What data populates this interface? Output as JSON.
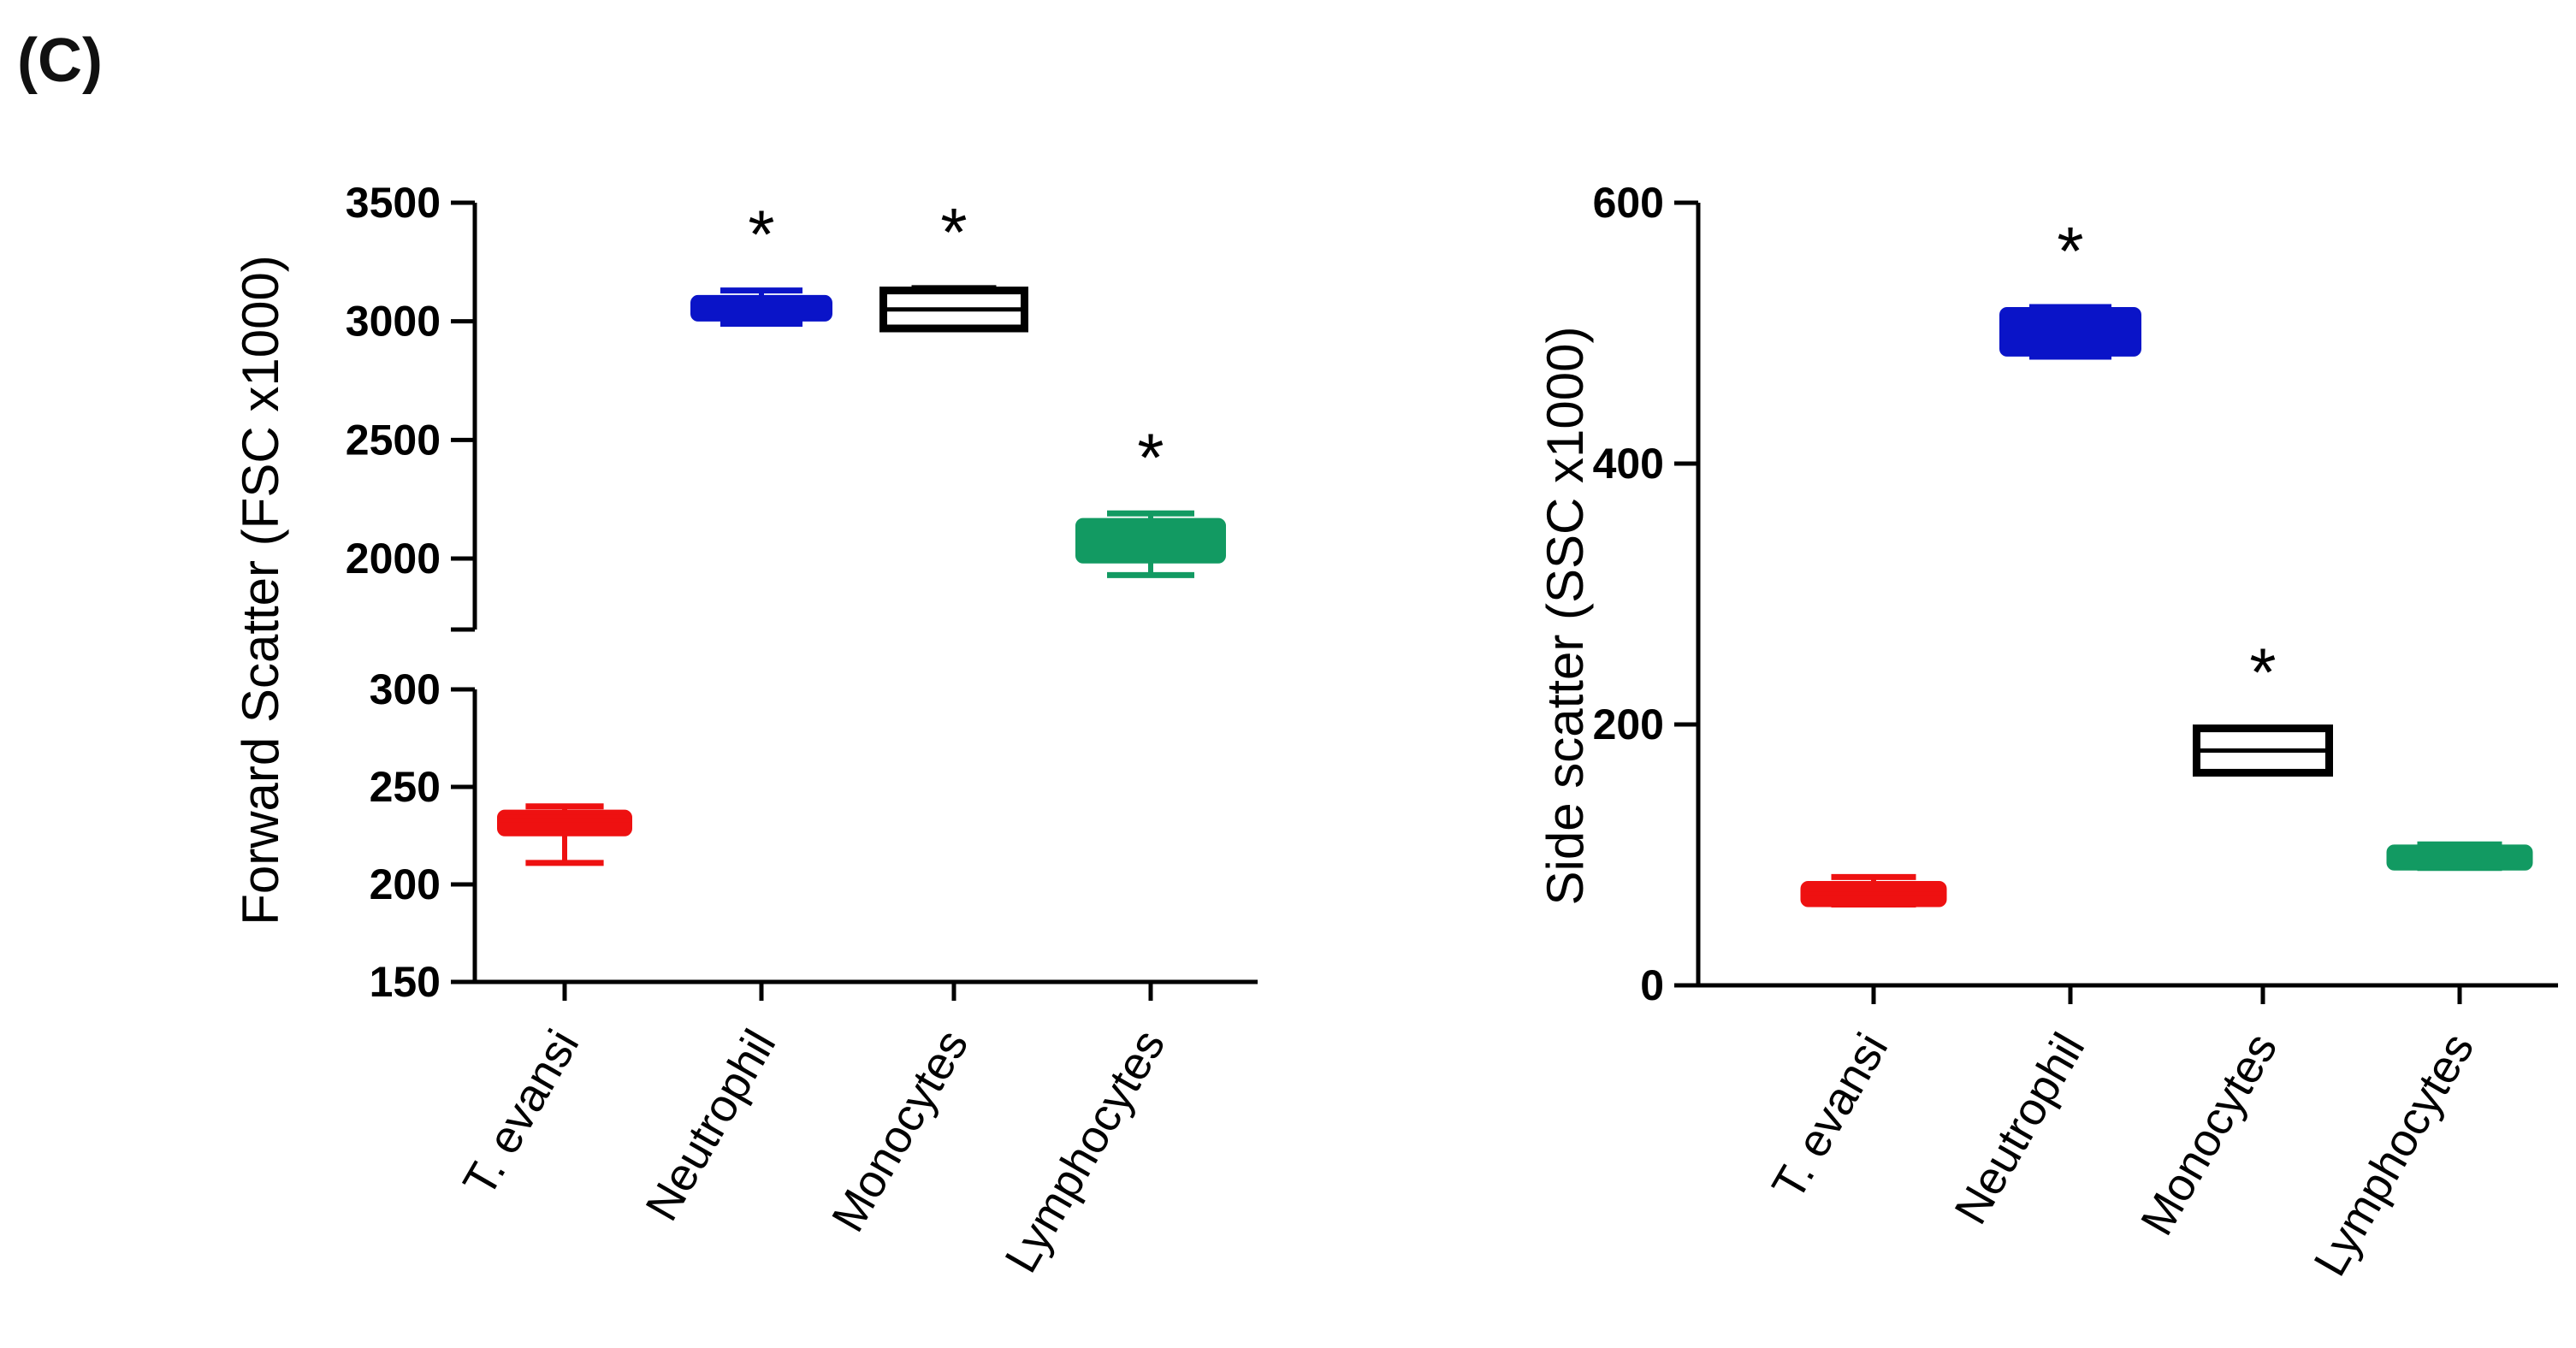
{
  "panel_label": "(C)",
  "colors": {
    "red": "#ee1111",
    "blue": "#0a14c8",
    "black": "#000000",
    "green": "#129a62",
    "axis": "#000000"
  },
  "chart_data": [
    {
      "type": "box",
      "ylabel": "Forward Scatter (FSC x1000)",
      "y_break": true,
      "upper_segment": {
        "ylim": [
          1700,
          3500
        ],
        "ticks": [
          "3500",
          "3000",
          "2500",
          "2000"
        ]
      },
      "lower_segment": {
        "ylim": [
          150,
          300
        ],
        "ticks": [
          "300",
          "250",
          "200",
          "150"
        ]
      },
      "categories": [
        "T. evansi",
        "Neutrophil",
        "Monocytes",
        "Lymphocytes"
      ],
      "boxes": [
        {
          "category": "T. evansi",
          "min": 211,
          "q1": 226,
          "median": 233,
          "q3": 237,
          "max": 240,
          "color": "red",
          "filled": true,
          "significant": false
        },
        {
          "category": "Neutrophil",
          "min": 2990,
          "q1": 3010,
          "median": 3060,
          "q3": 3100,
          "max": 3130,
          "color": "blue",
          "filled": true,
          "significant": true
        },
        {
          "category": "Monocytes",
          "min": 2970,
          "q1": 2970,
          "median": 3050,
          "q3": 3130,
          "max": 3140,
          "color": "black",
          "filled": false,
          "significant": true
        },
        {
          "category": "Lymphocytes",
          "min": 1930,
          "q1": 1990,
          "median": 2060,
          "q3": 2160,
          "max": 2190,
          "color": "green",
          "filled": true,
          "significant": true
        }
      ],
      "significance_marker": "*"
    },
    {
      "type": "box",
      "ylabel": "Side scatter (SSC x1000)",
      "ylim": [
        0,
        600
      ],
      "ticks": [
        "600",
        "400",
        "200",
        "0"
      ],
      "categories": [
        "T. evansi",
        "Neutrophil",
        "Monocytes",
        "Lymphocytes"
      ],
      "boxes": [
        {
          "category": "T. evansi",
          "min": 62,
          "q1": 62,
          "median": 70,
          "q3": 78,
          "max": 83,
          "color": "red",
          "filled": true,
          "significant": false
        },
        {
          "category": "Neutrophil",
          "min": 482,
          "q1": 484,
          "median": 500,
          "q3": 518,
          "max": 520,
          "color": "blue",
          "filled": true,
          "significant": true
        },
        {
          "category": "Monocytes",
          "min": 163,
          "q1": 163,
          "median": 180,
          "q3": 197,
          "max": 197,
          "color": "black",
          "filled": false,
          "significant": true
        },
        {
          "category": "Lymphocytes",
          "min": 90,
          "q1": 90,
          "median": 98,
          "q3": 106,
          "max": 108,
          "color": "green",
          "filled": true,
          "significant": false
        }
      ],
      "significance_marker": "*"
    }
  ]
}
